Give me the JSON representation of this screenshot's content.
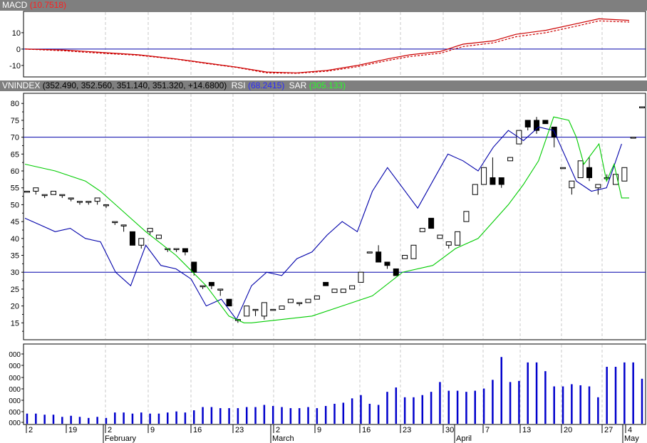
{
  "macd_header": {
    "label": "MACD",
    "value": "(10.7518)"
  },
  "price_header": {
    "label": "VNINDEX",
    "ohlc": "(352.490, 352.560, 351.140, 351.320, +14.6800)",
    "rsi_label": "RSI",
    "rsi_value": "(68.2415)",
    "sar_label": "SAR",
    "sar_value": "(305.133)"
  },
  "colors": {
    "macd": "#cc0000",
    "rsi": "#0000aa",
    "sar": "#00cc00",
    "volume": "#0000cc",
    "reference_lines": "#0000aa",
    "header_bg": "#7f7f7f"
  },
  "chart_data": [
    {
      "type": "line",
      "name": "MACD",
      "y_ticks": [
        "10",
        "0",
        "-10"
      ],
      "reference_line": 0,
      "ylim": [
        -17,
        23
      ],
      "series": [
        {
          "name": "MACD",
          "style": "solid",
          "x": [
            0,
            5,
            10,
            15,
            20,
            24,
            28,
            32,
            36,
            40,
            44,
            48,
            51,
            55,
            58,
            62,
            65,
            69,
            73,
            76,
            80
          ],
          "y": [
            0,
            -0.5,
            -2,
            -3.5,
            -6,
            -8.5,
            -11,
            -14,
            -14.5,
            -13,
            -10,
            -6,
            -3.5,
            -1.5,
            3,
            5,
            9,
            11.5,
            15.5,
            18.5,
            17.5
          ]
        },
        {
          "name": "Signal",
          "style": "dashed",
          "x": [
            0,
            5,
            10,
            15,
            20,
            24,
            28,
            32,
            36,
            40,
            44,
            48,
            51,
            55,
            58,
            62,
            65,
            69,
            73,
            76,
            80
          ],
          "y": [
            0,
            -1,
            -2.5,
            -3.8,
            -6.2,
            -8.8,
            -11.2,
            -14.5,
            -14.8,
            -13.5,
            -10.8,
            -7,
            -4.5,
            -2.5,
            1.5,
            3.8,
            7.5,
            10,
            14,
            17.2,
            16.5
          ]
        }
      ]
    },
    {
      "type": "candlestick",
      "name": "VNINDEX",
      "y_ticks": [
        "80",
        "75",
        "70",
        "65",
        "60",
        "55",
        "50",
        "45",
        "40",
        "35",
        "30",
        "25",
        "20",
        "15"
      ],
      "ylim": [
        10,
        83
      ],
      "reference_lines": [
        70,
        30
      ],
      "candles": [
        [
          54,
          54,
          54,
          54
        ],
        [
          54,
          55,
          53,
          55
        ],
        [
          53,
          53,
          52,
          53
        ],
        [
          53,
          54,
          53,
          54
        ],
        [
          53,
          53,
          52,
          53
        ],
        [
          52,
          52,
          51,
          52
        ],
        [
          51,
          51,
          50,
          51
        ],
        [
          51,
          51,
          50,
          51
        ],
        [
          51,
          52,
          50,
          52
        ],
        [
          50,
          50,
          49,
          50
        ],
        [
          45,
          45,
          44,
          45
        ],
        [
          44,
          44,
          42,
          44
        ],
        [
          42,
          42,
          38,
          38
        ],
        [
          38,
          40,
          37,
          40
        ],
        [
          42,
          43,
          41,
          43
        ],
        [
          40,
          41,
          40,
          41
        ],
        [
          37,
          37,
          36,
          37
        ],
        [
          37,
          37,
          36,
          37
        ],
        [
          37,
          37,
          35,
          36
        ],
        [
          33,
          33,
          29,
          30
        ],
        [
          26,
          26,
          25,
          26
        ],
        [
          27,
          27,
          25,
          26
        ],
        [
          25,
          25,
          23,
          25
        ],
        [
          22,
          22,
          20,
          20
        ],
        [
          16,
          16,
          15,
          16
        ],
        [
          17,
          20,
          17,
          20
        ],
        [
          19,
          19,
          17,
          19
        ],
        [
          17,
          21,
          16,
          21
        ],
        [
          19,
          19,
          19,
          19
        ],
        [
          19,
          20,
          19,
          20
        ],
        [
          21,
          22,
          21,
          22
        ],
        [
          21,
          21,
          20,
          21
        ],
        [
          21,
          22,
          21,
          22
        ],
        [
          22,
          23,
          22,
          23
        ],
        [
          27,
          27,
          26,
          26
        ],
        [
          24,
          25,
          24,
          25
        ],
        [
          24,
          25,
          24,
          25
        ],
        [
          25,
          26,
          25,
          26
        ],
        [
          27,
          30,
          27,
          30
        ],
        [
          36,
          36,
          36,
          36
        ],
        [
          36,
          38,
          33,
          33
        ],
        [
          33,
          33,
          31,
          32
        ],
        [
          31,
          31,
          29,
          29
        ],
        [
          34,
          35,
          34,
          35
        ],
        [
          34,
          38,
          34,
          38
        ],
        [
          42,
          43,
          42,
          43
        ],
        [
          46,
          46,
          43,
          43
        ],
        [
          40,
          41,
          40,
          41
        ],
        [
          38,
          39,
          37,
          39
        ],
        [
          38,
          42,
          38,
          42
        ],
        [
          45,
          48,
          45,
          48
        ],
        [
          53,
          56,
          53,
          56
        ],
        [
          56,
          61,
          56,
          61
        ],
        [
          58,
          64,
          56,
          56
        ],
        [
          58,
          58,
          55,
          56
        ],
        [
          63,
          64,
          63,
          64
        ],
        [
          68,
          72,
          68,
          72
        ],
        [
          75,
          75,
          72,
          73
        ],
        [
          75,
          76,
          71,
          72
        ],
        [
          75,
          75,
          74,
          74
        ],
        [
          73,
          73,
          67,
          70
        ],
        [
          61,
          61,
          61,
          61
        ],
        [
          55,
          57,
          53,
          57
        ],
        [
          58,
          63,
          58,
          63
        ],
        [
          61,
          64,
          57,
          58
        ],
        [
          55,
          56,
          53,
          56
        ],
        [
          58,
          59,
          57,
          58
        ],
        [
          56,
          59,
          56,
          59
        ],
        [
          57,
          61,
          57,
          61
        ],
        [
          70,
          70,
          70,
          70
        ],
        [
          79,
          79,
          79,
          79
        ]
      ],
      "series": [
        {
          "name": "RSI",
          "x": [
            0,
            2,
            4,
            6,
            8,
            10,
            12,
            14,
            16,
            18,
            20,
            22,
            24,
            26,
            28,
            30,
            32,
            34,
            36,
            38,
            40,
            42,
            44,
            46,
            48,
            50,
            52,
            54,
            56,
            58,
            60,
            62,
            64,
            66,
            68,
            70,
            71,
            73,
            75,
            77,
            79
          ],
          "y": [
            46,
            44,
            42,
            43,
            40,
            39,
            30,
            26,
            38,
            32,
            31,
            28,
            20,
            22,
            16,
            26,
            30,
            29,
            34,
            36,
            41,
            45,
            42,
            54,
            61,
            55,
            49,
            57,
            65,
            63,
            60,
            67,
            72,
            69,
            73,
            72,
            67,
            57,
            54,
            55,
            68
          ]
        },
        {
          "name": "SAR",
          "x": [
            0,
            4,
            8,
            10,
            12,
            14,
            16,
            20,
            24,
            27,
            29,
            30,
            34,
            38,
            42,
            46,
            50,
            54,
            57,
            60,
            62,
            64,
            66,
            68,
            70,
            72,
            73,
            74,
            76,
            77,
            78,
            79,
            80
          ],
          "y": [
            62,
            60,
            57,
            54,
            50,
            46,
            42,
            35,
            26,
            17,
            15,
            15,
            16,
            17,
            20,
            23,
            30,
            32,
            37,
            40,
            45,
            50,
            56,
            63,
            76,
            75,
            70,
            62,
            68,
            57,
            62,
            52,
            52
          ]
        }
      ]
    },
    {
      "type": "bar",
      "name": "Volume",
      "values": [
        10,
        10,
        9,
        9,
        7,
        8,
        7,
        6,
        7,
        6,
        11,
        11,
        10,
        11,
        10,
        10,
        11,
        12,
        11,
        13,
        16,
        16,
        15,
        15,
        15,
        16,
        16,
        18,
        17,
        16,
        15,
        15,
        16,
        15,
        17,
        19,
        20,
        24,
        27,
        19,
        18,
        30,
        34,
        25,
        25,
        27,
        30,
        39,
        31,
        31,
        30,
        31,
        33,
        41,
        62,
        39,
        40,
        57,
        57,
        49,
        35,
        35,
        37,
        36,
        35,
        25,
        53,
        53,
        57,
        57,
        42
      ]
    }
  ],
  "x_axis": {
    "day_labels": [
      "2",
      "19",
      "2",
      "9",
      "16",
      "23",
      "2",
      "9",
      "16",
      "23",
      "30",
      "7",
      "13",
      "20",
      "27",
      "4"
    ],
    "month_labels": [
      "February",
      "March",
      "April",
      "May"
    ]
  }
}
